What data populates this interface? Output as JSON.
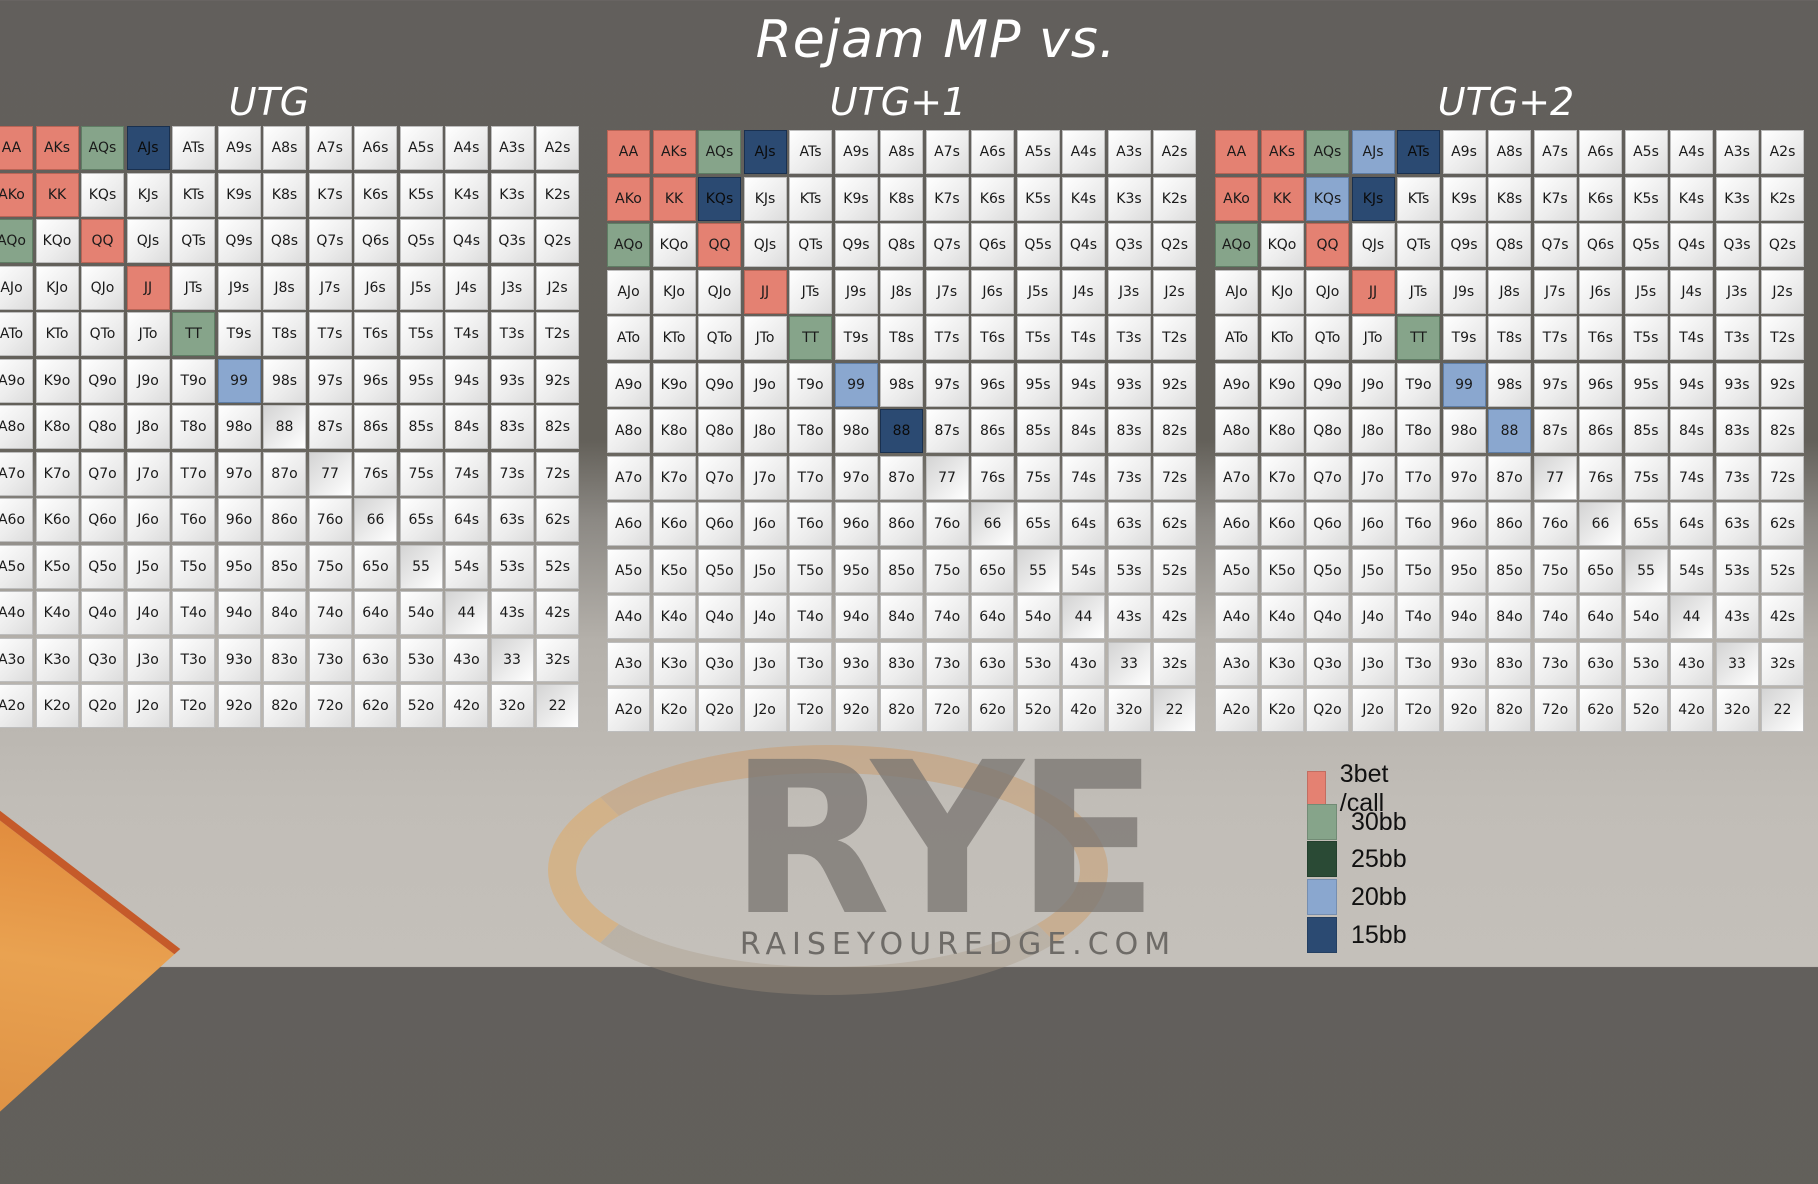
{
  "title": "Rejam MP vs.",
  "colors": {
    "3bet_call": "#e48172",
    "30bb": "#86a48a",
    "25bb": "#2a4a35",
    "20bb": "#8aa7cf",
    "15bb": "#2b4a72"
  },
  "ranks": [
    "A",
    "K",
    "Q",
    "J",
    "T",
    "9",
    "8",
    "7",
    "6",
    "5",
    "4",
    "3",
    "2"
  ],
  "charts": [
    {
      "title": "UTG",
      "highlights": {
        "AA": "3bet_call",
        "AKs": "3bet_call",
        "AKo": "3bet_call",
        "KK": "3bet_call",
        "QQ": "3bet_call",
        "JJ": "3bet_call",
        "AQs": "30bb",
        "AQo": "30bb",
        "TT": "30bb",
        "AJs": "15bb",
        "99": "20bb"
      }
    },
    {
      "title": "UTG+1",
      "highlights": {
        "AA": "3bet_call",
        "AKs": "3bet_call",
        "AKo": "3bet_call",
        "KK": "3bet_call",
        "QQ": "3bet_call",
        "JJ": "3bet_call",
        "AQs": "30bb",
        "AQo": "30bb",
        "TT": "30bb",
        "AJs": "15bb",
        "KQs": "15bb",
        "88": "15bb",
        "99": "20bb"
      }
    },
    {
      "title": "UTG+2",
      "highlights": {
        "AA": "3bet_call",
        "AKs": "3bet_call",
        "AKo": "3bet_call",
        "KK": "3bet_call",
        "QQ": "3bet_call",
        "JJ": "3bet_call",
        "AQs": "30bb",
        "AQo": "30bb",
        "TT": "30bb",
        "AJs": "20bb",
        "KQs": "20bb",
        "99": "20bb",
        "88": "20bb",
        "ATs": "15bb",
        "KJs": "15bb"
      }
    }
  ],
  "legend": [
    {
      "key": "3bet_call",
      "label": "3bet /call"
    },
    {
      "key": "30bb",
      "label": "30bb"
    },
    {
      "key": "25bb",
      "label": "25bb"
    },
    {
      "key": "20bb",
      "label": "20bb"
    },
    {
      "key": "15bb",
      "label": "15bb"
    }
  ],
  "logo": {
    "text": "RYE",
    "sub": "RAISEYOUREDGE.COM"
  }
}
